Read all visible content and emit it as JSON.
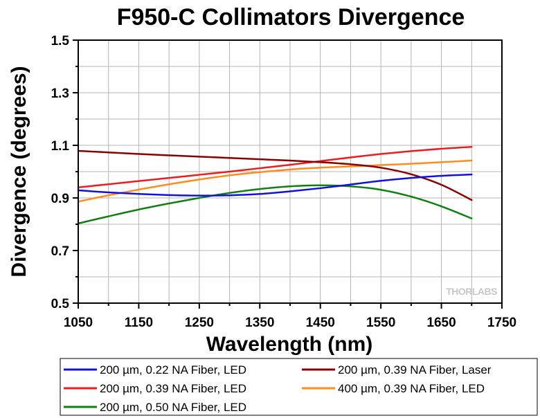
{
  "chart_data": {
    "type": "line",
    "title": "F950-C Collimators Divergence",
    "xlabel": "Wavelength (nm)",
    "ylabel": "Divergence (degrees)",
    "xlim": [
      1050,
      1750
    ],
    "ylim": [
      0.5,
      1.5
    ],
    "xticks": [
      1050,
      1150,
      1250,
      1350,
      1450,
      1550,
      1650,
      1750
    ],
    "xtick_labels": [
      "1050",
      "1150",
      "1250",
      "1350",
      "1450",
      "1550",
      "1650",
      "1750"
    ],
    "yticks": [
      0.5,
      0.7,
      0.9,
      1.1,
      1.3,
      1.5
    ],
    "ytick_labels": [
      "0.5",
      "0.7",
      "0.9",
      "1.1",
      "1.3",
      "1.5"
    ],
    "grid": true,
    "legend_position": "bottom",
    "watermark": "THORLABS",
    "series": [
      {
        "name": "200 µm, 0.22 NA Fiber, LED",
        "color": "#1010e0",
        "x": [
          1050,
          1100,
          1150,
          1200,
          1250,
          1300,
          1350,
          1400,
          1450,
          1500,
          1550,
          1600,
          1650,
          1700
        ],
        "y": [
          0.929,
          0.921,
          0.915,
          0.911,
          0.909,
          0.91,
          0.915,
          0.925,
          0.937,
          0.951,
          0.965,
          0.976,
          0.984,
          0.989
        ]
      },
      {
        "name": "200 µm, 0.39 NA Fiber, Laser",
        "color": "#8b0000",
        "x": [
          1050,
          1100,
          1150,
          1200,
          1250,
          1300,
          1350,
          1400,
          1450,
          1500,
          1550,
          1600,
          1650,
          1700
        ],
        "y": [
          1.079,
          1.073,
          1.067,
          1.062,
          1.057,
          1.052,
          1.047,
          1.042,
          1.036,
          1.028,
          1.015,
          0.99,
          0.95,
          0.892
        ]
      },
      {
        "name": "200 µm, 0.39 NA Fiber, LED",
        "color": "#ee1c1c",
        "x": [
          1050,
          1100,
          1150,
          1200,
          1250,
          1300,
          1350,
          1400,
          1450,
          1500,
          1550,
          1600,
          1650,
          1700
        ],
        "y": [
          0.94,
          0.952,
          0.964,
          0.976,
          0.988,
          1.0,
          1.013,
          1.026,
          1.04,
          1.054,
          1.067,
          1.078,
          1.087,
          1.094
        ]
      },
      {
        "name": "400 µm, 0.39 NA Fiber, LED",
        "color": "#ff8c1a",
        "x": [
          1050,
          1100,
          1150,
          1200,
          1250,
          1300,
          1350,
          1400,
          1450,
          1500,
          1550,
          1600,
          1650,
          1700
        ],
        "y": [
          0.886,
          0.91,
          0.932,
          0.952,
          0.97,
          0.986,
          0.998,
          1.008,
          1.015,
          1.02,
          1.025,
          1.03,
          1.036,
          1.042
        ]
      },
      {
        "name": "200 µm, 0.50 NA Fiber, LED",
        "color": "#108010",
        "x": [
          1050,
          1100,
          1150,
          1200,
          1250,
          1300,
          1350,
          1400,
          1450,
          1500,
          1550,
          1600,
          1650,
          1700
        ],
        "y": [
          0.803,
          0.83,
          0.856,
          0.879,
          0.9,
          0.919,
          0.934,
          0.944,
          0.948,
          0.944,
          0.931,
          0.905,
          0.868,
          0.822
        ]
      }
    ],
    "legend_order": [
      0,
      1,
      2,
      3,
      4
    ]
  }
}
